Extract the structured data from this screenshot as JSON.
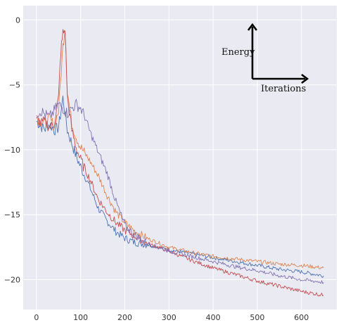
{
  "chart_data": {
    "type": "line",
    "title": "",
    "xlabel": "",
    "ylabel": "",
    "xlim": [
      -30,
      680
    ],
    "ylim": [
      -22.3,
      1.1
    ],
    "x_ticks": [
      0,
      100,
      200,
      300,
      400,
      500,
      600
    ],
    "y_ticks": [
      0,
      -5,
      -10,
      -15,
      -20
    ],
    "x_tick_labels": [
      "0",
      "100",
      "200",
      "300",
      "400",
      "500",
      "600"
    ],
    "y_tick_labels": [
      "0",
      "−5",
      "−10",
      "−15",
      "−20"
    ],
    "grid": true,
    "legend": "none",
    "background": "#eaeaf2",
    "annotation": {
      "y_arrow_label": "Energy",
      "x_arrow_label": "Iterations"
    },
    "series": [
      {
        "color": "#4c72b0",
        "x": [
          0,
          10,
          20,
          30,
          40,
          50,
          60,
          70,
          80,
          90,
          100,
          120,
          140,
          160,
          180,
          200,
          220,
          250,
          300,
          350,
          400,
          450,
          500,
          550,
          600,
          650
        ],
        "values": [
          -7.8,
          -8.2,
          -8.4,
          -8.0,
          -8.5,
          -8.3,
          -6.0,
          -8.5,
          -9.5,
          -10.5,
          -11.3,
          -12.8,
          -14.5,
          -15.5,
          -16.3,
          -16.8,
          -17.1,
          -17.3,
          -17.7,
          -18.0,
          -18.3,
          -18.6,
          -18.9,
          -19.2,
          -19.4,
          -19.7
        ]
      },
      {
        "color": "#dd8452",
        "x": [
          0,
          10,
          20,
          30,
          40,
          50,
          60,
          65,
          70,
          80,
          90,
          100,
          120,
          140,
          160,
          180,
          200,
          220,
          250,
          300,
          350,
          400,
          450,
          500,
          550,
          600,
          650
        ],
        "values": [
          -7.5,
          -7.8,
          -8.0,
          -7.6,
          -8.2,
          -7.0,
          -2.0,
          -0.5,
          -5.5,
          -8.0,
          -9.0,
          -9.8,
          -10.8,
          -12.0,
          -13.5,
          -14.8,
          -15.6,
          -16.2,
          -16.8,
          -17.5,
          -17.9,
          -18.2,
          -18.4,
          -18.6,
          -18.8,
          -18.9,
          -19.1
        ]
      },
      {
        "color": "#c44e52",
        "x": [
          0,
          10,
          20,
          30,
          40,
          50,
          55,
          60,
          65,
          70,
          80,
          90,
          100,
          120,
          140,
          160,
          180,
          200,
          220,
          250,
          300,
          350,
          400,
          450,
          500,
          550,
          600,
          650
        ],
        "values": [
          -7.6,
          -8.0,
          -7.8,
          -8.3,
          -8.0,
          -6.0,
          -2.5,
          -1.0,
          -0.8,
          -6.0,
          -8.5,
          -9.8,
          -10.8,
          -12.2,
          -13.8,
          -14.8,
          -15.6,
          -16.2,
          -16.6,
          -17.2,
          -17.8,
          -18.5,
          -19.1,
          -19.6,
          -20.1,
          -20.5,
          -20.9,
          -21.2
        ]
      },
      {
        "color": "#8172b2",
        "x": [
          0,
          10,
          20,
          30,
          40,
          50,
          60,
          70,
          80,
          90,
          100,
          110,
          120,
          140,
          160,
          180,
          200,
          220,
          250,
          300,
          350,
          400,
          450,
          500,
          550,
          600,
          650
        ],
        "values": [
          -7.2,
          -7.0,
          -7.3,
          -7.5,
          -7.0,
          -6.5,
          -6.8,
          -7.2,
          -6.8,
          -6.5,
          -6.8,
          -7.5,
          -8.5,
          -10.2,
          -11.8,
          -14.0,
          -15.8,
          -16.5,
          -17.2,
          -17.8,
          -18.2,
          -18.6,
          -19.0,
          -19.3,
          -19.7,
          -20.0,
          -20.2
        ]
      }
    ]
  }
}
